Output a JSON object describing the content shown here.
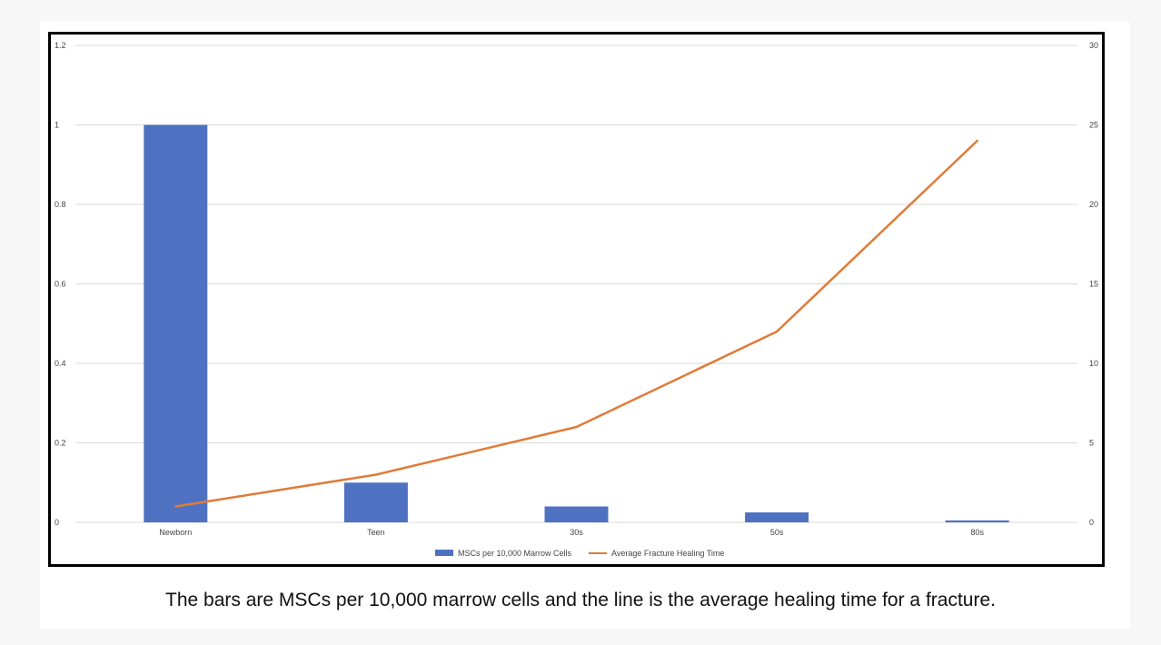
{
  "chart_data": {
    "type": "bar",
    "categories": [
      "Newborn",
      "Teen",
      "30s",
      "50s",
      "80s"
    ],
    "series": [
      {
        "name": "MSCs per 10,000 Marrow Cells",
        "type": "bar",
        "axis": "left",
        "values": [
          1,
          0.1,
          0.04,
          0.025,
          0.005
        ]
      },
      {
        "name": "Average Fracture Healing Time",
        "type": "line",
        "axis": "right",
        "values": [
          1,
          3,
          6,
          12,
          24
        ]
      }
    ],
    "y_left": {
      "lim": [
        0,
        1.2
      ],
      "ticks": [
        "0",
        "0.2",
        "0.4",
        "0.6",
        "0.8",
        "1",
        "1.2"
      ]
    },
    "y_right": {
      "lim": [
        0,
        30
      ],
      "ticks": [
        "0",
        "5",
        "10",
        "15",
        "20",
        "25",
        "30"
      ]
    },
    "title": "",
    "xlabel": "",
    "ylabel": "",
    "grid": true,
    "legend_position": "bottom",
    "colors": {
      "bar": "#4e72c1",
      "line": "#e07b39",
      "grid": "#d9d9d9"
    }
  },
  "caption": "The bars are MSCs per 10,000 marrow cells and the line is the average healing time for a fracture."
}
